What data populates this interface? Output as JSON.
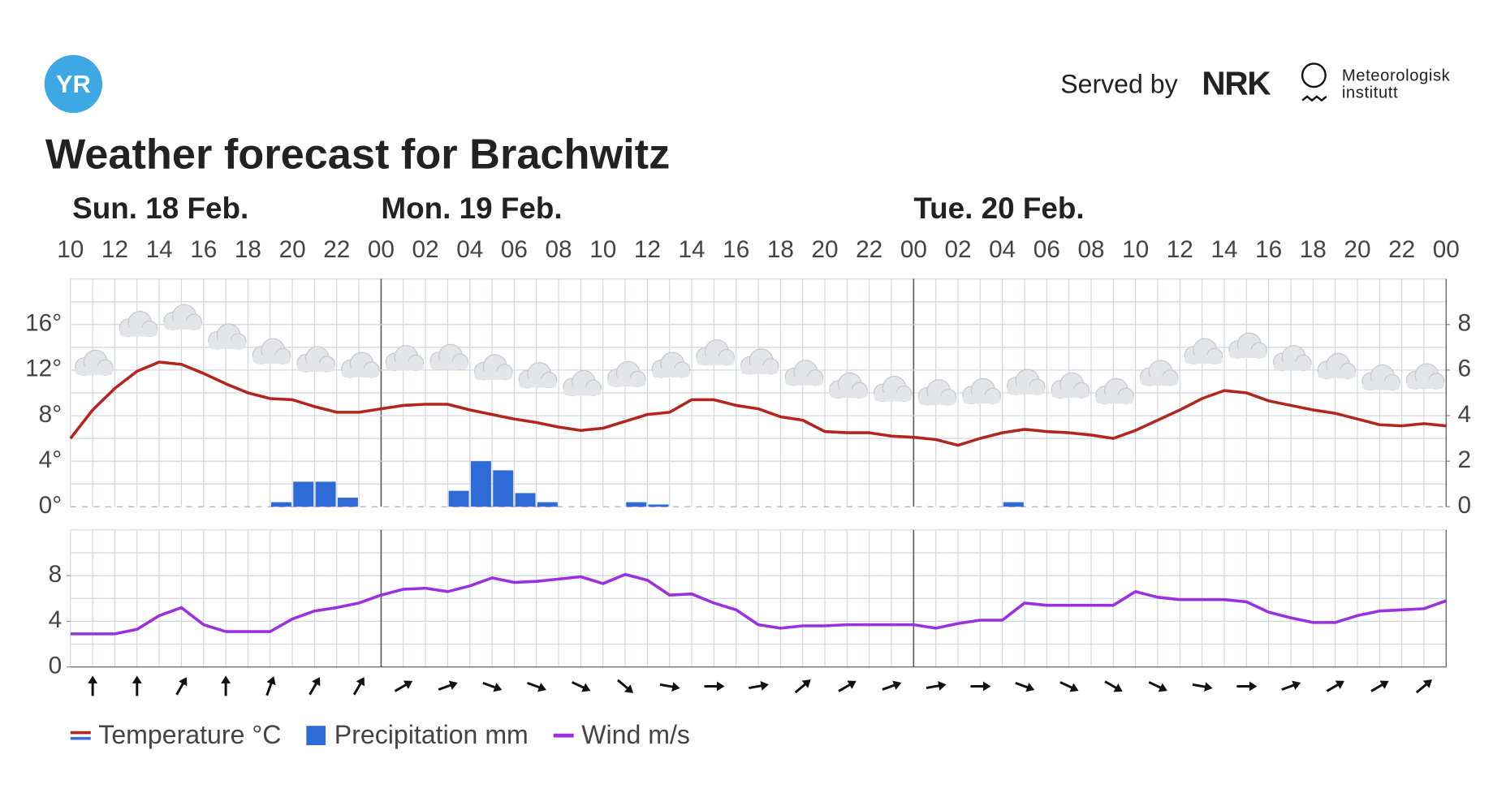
{
  "header": {
    "yr_logo": "YR",
    "served_by": "Served by",
    "nrk_logo": "NRK",
    "met_line1": "Meteorologisk",
    "met_line2": "institutt"
  },
  "chart_data": {
    "type": "line",
    "title": "Weather forecast for Brachwitz",
    "days": [
      "Sun. 18 Feb.",
      "Mon. 19 Feb.",
      "Tue. 20 Feb."
    ],
    "categories": [
      "10",
      null,
      "12",
      null,
      "14",
      null,
      "16",
      null,
      "18",
      null,
      "20",
      null,
      "22",
      null,
      "00",
      null,
      "02",
      null,
      "04",
      null,
      "06",
      null,
      "08",
      null,
      "10",
      null,
      "12",
      null,
      "14",
      null,
      "16",
      null,
      "18",
      null,
      "20",
      null,
      "22",
      null,
      "00",
      null,
      "02",
      null,
      "04",
      null,
      "06",
      null,
      "08",
      null,
      "10",
      null,
      "12",
      null,
      "14",
      null,
      "16",
      null,
      "18",
      null,
      "20",
      null,
      "22",
      null,
      "00"
    ],
    "ylim": [
      0,
      20
    ],
    "yticks": [
      {
        "value": 0,
        "label": "0°"
      },
      {
        "value": 4,
        "label": "4°"
      },
      {
        "value": 8,
        "label": "8°"
      },
      {
        "value": 12,
        "label": "12°"
      },
      {
        "value": 16,
        "label": "16°"
      }
    ],
    "y2lim": [
      0,
      10
    ],
    "y2ticks": [
      0,
      2,
      4,
      6,
      8
    ],
    "wind_ylim": [
      0,
      12
    ],
    "wind_yticks": [
      0,
      4,
      8
    ],
    "grid": true,
    "series": [
      {
        "name": "Temperature °C",
        "color": "#b3261e",
        "values": [
          6.0,
          8.5,
          10.4,
          11.9,
          12.7,
          12.5,
          11.7,
          10.8,
          10.0,
          9.5,
          9.4,
          8.8,
          8.3,
          8.3,
          8.6,
          8.9,
          9.0,
          9.0,
          8.5,
          8.1,
          7.7,
          7.4,
          7.0,
          6.7,
          6.9,
          7.5,
          8.1,
          8.3,
          9.4,
          9.4,
          8.9,
          8.6,
          7.9,
          7.6,
          6.6,
          6.5,
          6.5,
          6.2,
          6.1,
          5.9,
          5.4,
          6.0,
          6.5,
          6.8,
          6.6,
          6.5,
          6.3,
          6.0,
          6.7,
          7.6,
          8.5,
          9.5,
          10.2,
          10.0,
          9.3,
          8.9,
          8.5,
          8.2,
          7.7,
          7.2,
          7.1,
          7.3,
          7.1
        ]
      },
      {
        "name": "Precipitation mm",
        "color": "#2f6bd6",
        "axis": "y2",
        "values": [
          0,
          0,
          0,
          0,
          0,
          0,
          0,
          0,
          0,
          0.2,
          1.1,
          1.1,
          0.4,
          0,
          0,
          0,
          0,
          0.7,
          2.0,
          1.6,
          0.6,
          0.2,
          0,
          0,
          0,
          0.2,
          0.1,
          0,
          0,
          0,
          0,
          0,
          0,
          0,
          0,
          0,
          0,
          0,
          0,
          0,
          0,
          0,
          0.2,
          0,
          0,
          0,
          0,
          0,
          0,
          0,
          0,
          0,
          0,
          0,
          0,
          0,
          0,
          0,
          0,
          0,
          0,
          0,
          null
        ]
      },
      {
        "name": "Wind m/s",
        "color": "#9b30e0",
        "axis": "wind",
        "values": [
          2.9,
          2.9,
          2.9,
          3.3,
          4.5,
          5.2,
          3.7,
          3.1,
          3.1,
          3.1,
          4.2,
          4.9,
          5.2,
          5.6,
          6.3,
          6.8,
          6.9,
          6.6,
          7.1,
          7.8,
          7.4,
          7.5,
          7.7,
          7.9,
          7.3,
          8.1,
          7.6,
          6.3,
          6.4,
          5.6,
          5.0,
          3.7,
          3.4,
          3.6,
          3.6,
          3.7,
          3.7,
          3.7,
          3.7,
          3.4,
          3.8,
          4.1,
          4.1,
          5.6,
          5.4,
          5.4,
          5.4,
          5.4,
          6.6,
          6.1,
          5.9,
          5.9,
          5.9,
          5.7,
          4.8,
          4.3,
          3.9,
          3.9,
          4.5,
          4.9,
          5.0,
          5.1,
          5.8
        ]
      }
    ],
    "wind_direction": [
      null,
      0,
      null,
      0,
      null,
      30,
      null,
      0,
      null,
      20,
      null,
      30,
      null,
      30,
      null,
      60,
      null,
      70,
      null,
      110,
      null,
      110,
      null,
      115,
      null,
      130,
      null,
      100,
      null,
      90,
      null,
      80,
      null,
      50,
      null,
      60,
      null,
      70,
      null,
      80,
      null,
      90,
      null,
      110,
      null,
      115,
      null,
      120,
      null,
      115,
      null,
      100,
      null,
      90,
      null,
      70,
      null,
      60,
      null,
      60,
      null,
      50
    ]
  }
}
